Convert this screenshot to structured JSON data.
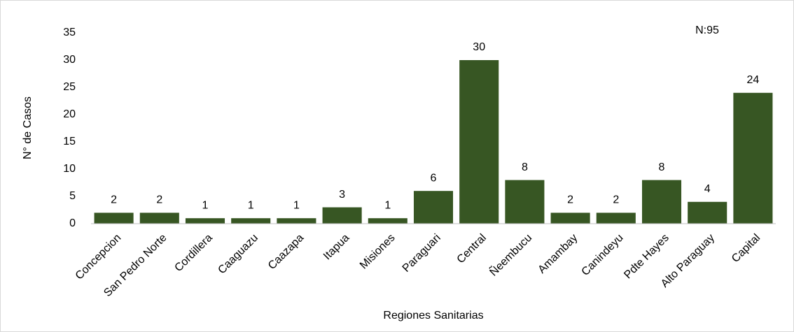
{
  "chart_data": {
    "type": "bar",
    "annotation": "N:95",
    "x_label": "Regiones Sanitarias",
    "y_label": "N° de Casos",
    "categories": [
      "Concepcion",
      "San Pedro Norte",
      "Cordillera",
      "Caaguazu",
      "Caazapa",
      "Itapua",
      "Misiones",
      "Paraguari",
      "Central",
      "Ñeembucu",
      "Amambay",
      "Canindeyu",
      "Pdte Hayes",
      "Alto Paraguay",
      "Capital"
    ],
    "values": [
      2,
      2,
      1,
      1,
      1,
      3,
      1,
      6,
      30,
      8,
      2,
      2,
      8,
      4,
      24
    ],
    "color": "#375623",
    "ylim": [
      0,
      35
    ],
    "yticks": [
      0,
      5,
      10,
      15,
      20,
      25,
      30,
      35
    ],
    "grid": false
  }
}
